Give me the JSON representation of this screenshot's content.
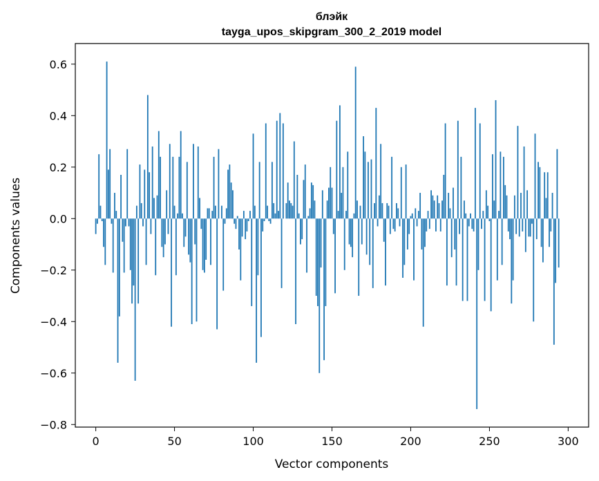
{
  "chart_data": {
    "type": "bar",
    "title": "блэйк",
    "subtitle": "tayga_upos_skipgram_300_2_2019 model",
    "xlabel": "Vector components",
    "ylabel": "Components values",
    "xlim": [
      -13,
      313
    ],
    "ylim": [
      -0.81,
      0.68
    ],
    "xticks": [
      0,
      50,
      100,
      150,
      200,
      250,
      300
    ],
    "xtick_labels": [
      "0",
      "50",
      "100",
      "150",
      "200",
      "250",
      "300"
    ],
    "yticks": [
      0.6,
      0.4,
      0.2,
      0.0,
      -0.2,
      -0.4,
      -0.6,
      -0.8
    ],
    "ytick_labels": [
      "0.6",
      "0.4",
      "0.2",
      "0.0",
      "−0.2",
      "−0.4",
      "−0.6",
      "−0.8"
    ],
    "bar_color": "#1f77b4",
    "grid": false,
    "values": [
      -0.06,
      -0.02,
      0.25,
      0.05,
      -0.01,
      -0.11,
      -0.18,
      0.61,
      0.19,
      0.27,
      -0.02,
      -0.21,
      0.1,
      0.03,
      -0.56,
      -0.38,
      0.17,
      -0.09,
      -0.21,
      -0.03,
      0.27,
      -0.03,
      -0.2,
      -0.33,
      -0.26,
      -0.63,
      0.05,
      -0.33,
      0.21,
      0.06,
      -0.03,
      0.19,
      -0.18,
      0.48,
      0.18,
      -0.06,
      0.28,
      0.08,
      -0.22,
      0.09,
      0.34,
      0.24,
      -0.11,
      -0.15,
      -0.1,
      0.11,
      -0.06,
      0.29,
      -0.42,
      0.24,
      0.05,
      -0.22,
      0.02,
      0.24,
      0.34,
      0.02,
      -0.11,
      -0.07,
      0.22,
      -0.14,
      -0.17,
      -0.41,
      0.29,
      -0.1,
      -0.4,
      0.28,
      0.08,
      -0.04,
      -0.2,
      -0.21,
      -0.16,
      0.04,
      0.04,
      -0.18,
      0.03,
      0.24,
      0.05,
      -0.43,
      0.27,
      0.0,
      0.05,
      -0.28,
      -0.02,
      0.04,
      0.19,
      0.21,
      0.14,
      0.11,
      -0.02,
      -0.04,
      0.01,
      -0.12,
      -0.24,
      -0.07,
      0.03,
      -0.08,
      -0.05,
      -0.01,
      0.03,
      -0.34,
      0.33,
      0.05,
      -0.56,
      -0.22,
      0.22,
      -0.46,
      -0.05,
      -0.01,
      0.37,
      0.05,
      -0.01,
      -0.02,
      0.22,
      0.06,
      0.02,
      0.38,
      0.03,
      0.41,
      -0.27,
      0.37,
      0.0,
      0.06,
      0.14,
      0.07,
      0.06,
      0.05,
      0.3,
      -0.41,
      0.17,
      0.02,
      -0.1,
      -0.08,
      0.15,
      0.21,
      -0.21,
      0.01,
      0.04,
      0.14,
      0.13,
      0.07,
      -0.3,
      -0.34,
      -0.6,
      -0.19,
      0.11,
      -0.55,
      -0.34,
      0.07,
      0.12,
      0.2,
      0.12,
      -0.06,
      -0.29,
      0.38,
      0.03,
      0.44,
      0.1,
      0.2,
      -0.2,
      0.03,
      0.26,
      -0.1,
      -0.11,
      -0.15,
      0.02,
      0.59,
      0.07,
      -0.3,
      0.05,
      -0.1,
      0.32,
      0.26,
      -0.14,
      0.22,
      -0.18,
      0.23,
      -0.27,
      0.06,
      0.43,
      -0.03,
      0.09,
      0.29,
      0.06,
      -0.09,
      -0.26,
      0.06,
      0.05,
      -0.06,
      0.24,
      -0.04,
      -0.05,
      0.06,
      0.04,
      -0.03,
      0.2,
      -0.23,
      -0.18,
      0.21,
      -0.12,
      -0.06,
      0.01,
      0.02,
      -0.24,
      0.04,
      -0.03,
      0.03,
      0.1,
      -0.12,
      -0.42,
      -0.11,
      -0.05,
      0.03,
      -0.04,
      0.11,
      0.09,
      0.07,
      -0.05,
      0.09,
      0.06,
      -0.05,
      0.07,
      0.17,
      0.37,
      -0.26,
      0.1,
      0.04,
      -0.15,
      0.12,
      -0.12,
      -0.26,
      0.38,
      -0.06,
      0.24,
      -0.32,
      0.07,
      0.02,
      -0.32,
      -0.03,
      0.02,
      -0.04,
      -0.05,
      0.43,
      -0.74,
      -0.2,
      0.37,
      -0.04,
      0.03,
      -0.32,
      0.11,
      0.05,
      -0.01,
      -0.36,
      0.25,
      0.07,
      0.46,
      -0.24,
      0.03,
      0.26,
      -0.18,
      0.24,
      0.13,
      0.09,
      -0.05,
      -0.08,
      -0.33,
      -0.24,
      0.09,
      -0.06,
      0.36,
      -0.07,
      0.1,
      -0.05,
      0.28,
      -0.13,
      0.11,
      -0.07,
      -0.07,
      -0.02,
      -0.4,
      0.33,
      -0.08,
      0.22,
      0.2,
      -0.11,
      -0.17,
      0.18,
      0.08,
      0.18,
      -0.11,
      -0.05,
      0.1,
      -0.49,
      -0.25,
      0.27,
      -0.19
    ]
  }
}
